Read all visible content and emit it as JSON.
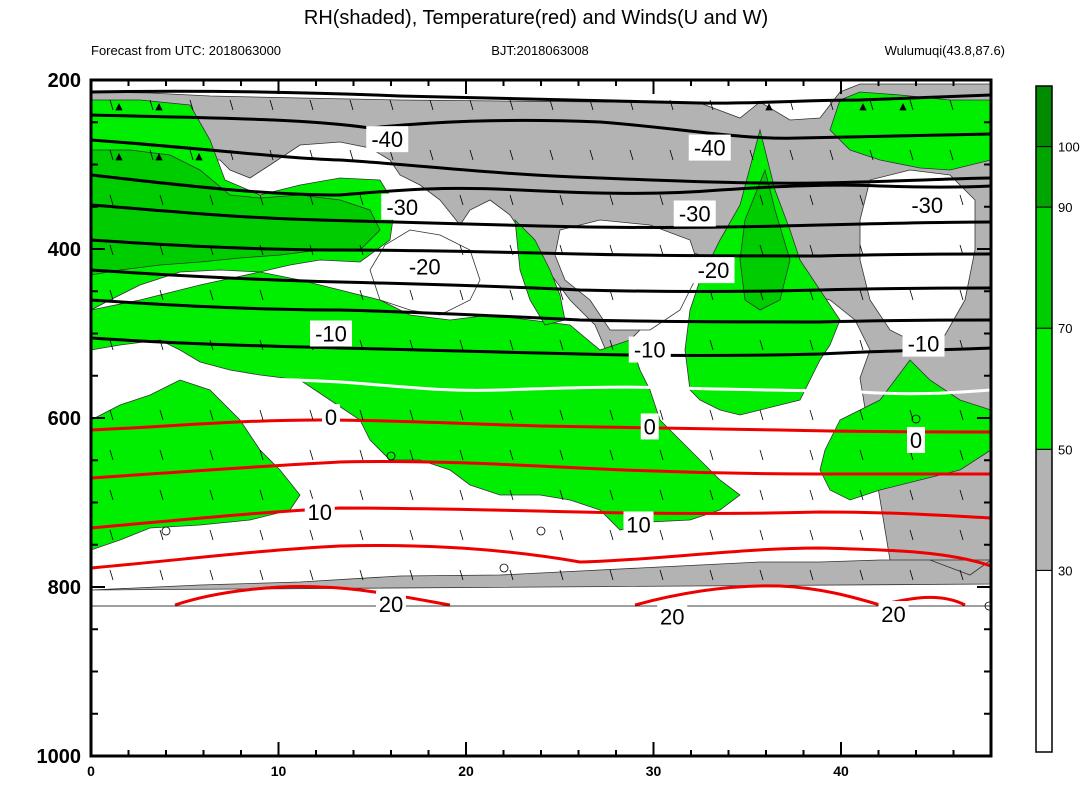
{
  "title": "RH(shaded), Temperature(red) and Winds(U and W)",
  "subtitle_left": "Forecast from UTC: 2018063000",
  "subtitle_center": "BJT:2018063008",
  "subtitle_right": "Wulumuqi(43.8,87.6)",
  "chart_data": {
    "type": "contour",
    "x_ticks": [
      "0",
      "10",
      "20",
      "30",
      "40"
    ],
    "y_ticks": [
      "200",
      "400",
      "600",
      "800",
      "1000"
    ],
    "xlim": [
      0,
      48
    ],
    "ylim": [
      1000,
      200
    ],
    "colorbar": {
      "labels": [
        "30",
        "50",
        "70",
        "90",
        "100"
      ],
      "bins": [
        {
          "from": 0,
          "to": 30,
          "color": "#ffffff"
        },
        {
          "from": 30,
          "to": 50,
          "color": "#b3b3b3"
        },
        {
          "from": 50,
          "to": 70,
          "color": "#00ee00"
        },
        {
          "from": 70,
          "to": 90,
          "color": "#00cd00"
        },
        {
          "from": 90,
          "to": 100,
          "color": "#00a500"
        },
        {
          "from": 100,
          "to": 110,
          "color": "#008b00"
        }
      ]
    },
    "contour_labels": [
      {
        "text": "-40",
        "x": 15.8,
        "y": 270
      },
      {
        "text": "-40",
        "x": 33.0,
        "y": 280
      },
      {
        "text": "-30",
        "x": 16.6,
        "y": 350
      },
      {
        "text": "-30",
        "x": 32.2,
        "y": 358
      },
      {
        "text": "-30",
        "x": 44.6,
        "y": 348
      },
      {
        "text": "-20",
        "x": 17.8,
        "y": 421
      },
      {
        "text": "-20",
        "x": 33.2,
        "y": 425
      },
      {
        "text": "-10",
        "x": 12.8,
        "y": 500
      },
      {
        "text": "-10",
        "x": 29.8,
        "y": 519
      },
      {
        "text": "-10",
        "x": 44.4,
        "y": 512
      },
      {
        "text": "0",
        "x": 12.8,
        "y": 599
      },
      {
        "text": "0",
        "x": 29.8,
        "y": 610
      },
      {
        "text": "0",
        "x": 44.0,
        "y": 626
      },
      {
        "text": "10",
        "x": 12.2,
        "y": 711
      },
      {
        "text": "10",
        "x": 29.2,
        "y": 726
      },
      {
        "text": "20",
        "x": 16.0,
        "y": 820
      },
      {
        "text": "20",
        "x": 31.0,
        "y": 835
      },
      {
        "text": "20",
        "x": 42.8,
        "y": 832
      }
    ]
  }
}
